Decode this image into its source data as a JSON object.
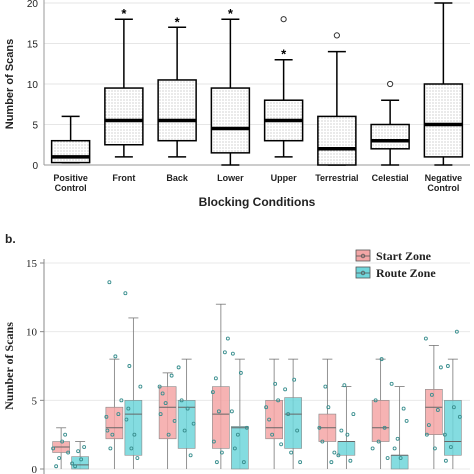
{
  "chart_data": [
    {
      "type": "box",
      "xlabel": "Blocking Conditions",
      "ylabel": "Number of Scans",
      "ylim": [
        0,
        20
      ],
      "yticks": [
        0,
        5,
        10,
        15,
        20
      ],
      "categories": [
        "Positive Control",
        "Front",
        "Back",
        "Lower",
        "Upper",
        "Terrestrial",
        "Celestial",
        "Negative Control"
      ],
      "boxes": [
        {
          "whisker_low": 0.3,
          "q1": 0.3,
          "median": 1,
          "q3": 3,
          "whisker_high": 6,
          "outliers": [],
          "significance": ""
        },
        {
          "whisker_low": 1,
          "q1": 2.5,
          "median": 5.5,
          "q3": 9.5,
          "whisker_high": 18,
          "outliers": [],
          "significance": "*"
        },
        {
          "whisker_low": 1,
          "q1": 3,
          "median": 5.5,
          "q3": 10.5,
          "whisker_high": 17,
          "outliers": [],
          "significance": "*"
        },
        {
          "whisker_low": 0,
          "q1": 1.5,
          "median": 4.5,
          "q3": 9.5,
          "whisker_high": 18,
          "outliers": [],
          "significance": "*"
        },
        {
          "whisker_low": 1,
          "q1": 3,
          "median": 5.5,
          "q3": 8,
          "whisker_high": 13,
          "outliers": [
            18
          ],
          "significance": "*"
        },
        {
          "whisker_low": 0,
          "q1": 0,
          "median": 2,
          "q3": 6,
          "whisker_high": 14,
          "outliers": [
            16
          ],
          "significance": ""
        },
        {
          "whisker_low": 0,
          "q1": 2,
          "median": 3,
          "q3": 5,
          "whisker_high": 8,
          "outliers": [
            10
          ],
          "significance": ""
        },
        {
          "whisker_low": 0,
          "q1": 1,
          "median": 5,
          "q3": 10,
          "whisker_high": 20,
          "outliers": [],
          "significance": ""
        }
      ],
      "colors": {
        "box_fill": "#f2f2f2",
        "stroke": "#000000"
      }
    },
    {
      "type": "box",
      "panel_label": "b.",
      "ylabel": "Number of Scans",
      "ylim": [
        0,
        15
      ],
      "yticks": [
        0,
        5,
        10,
        15
      ],
      "legend": [
        "Start Zone",
        "Route Zone"
      ],
      "legend_position": "top-right",
      "colors": {
        "start": "#f4a6a6",
        "route": "#6fd6db",
        "points": "#3a8f8f"
      },
      "groups": [
        {
          "start": {
            "whisker_low": 0,
            "q1": 1.2,
            "median": 1.6,
            "q3": 2.0,
            "whisker_high": 3.0
          },
          "route": {
            "whisker_low": 0,
            "q1": 0,
            "median": 0.3,
            "q3": 0.9,
            "whisker_high": 2.0
          }
        },
        {
          "start": {
            "whisker_low": 0,
            "q1": 2.2,
            "median": 3.0,
            "q3": 4.5,
            "whisker_high": 8.0
          },
          "route": {
            "whisker_low": 0,
            "q1": 1.0,
            "median": 4.0,
            "q3": 5.0,
            "whisker_high": 11.0
          }
        },
        {
          "start": {
            "whisker_low": 0,
            "q1": 2.2,
            "median": 4.5,
            "q3": 6.0,
            "whisker_high": 7.0
          },
          "route": {
            "whisker_low": 0,
            "q1": 1.5,
            "median": 4.5,
            "q3": 5.0,
            "whisker_high": 8.0
          }
        },
        {
          "start": {
            "whisker_low": 0,
            "q1": 1.5,
            "median": 4.0,
            "q3": 6.0,
            "whisker_high": 12.0
          },
          "route": {
            "whisker_low": 0,
            "q1": 0,
            "median": 3.0,
            "q3": 3.1,
            "whisker_high": 8.0
          }
        },
        {
          "start": {
            "whisker_low": 0,
            "q1": 2.2,
            "median": 3.0,
            "q3": 5.0,
            "whisker_high": 8.0
          },
          "route": {
            "whisker_low": 0,
            "q1": 1.5,
            "median": 4.0,
            "q3": 5.2,
            "whisker_high": 8.0
          }
        },
        {
          "start": {
            "whisker_low": 0,
            "q1": 2.0,
            "median": 3.0,
            "q3": 4.0,
            "whisker_high": 8.0
          },
          "route": {
            "whisker_low": 0,
            "q1": 1.0,
            "median": 2.0,
            "q3": 2.0,
            "whisker_high": 6.0
          }
        },
        {
          "start": {
            "whisker_low": 0,
            "q1": 2.0,
            "median": 3.0,
            "q3": 5.0,
            "whisker_high": 8.0
          },
          "route": {
            "whisker_low": 0,
            "q1": 0,
            "median": 1.0,
            "q3": 1.0,
            "whisker_high": 6.0
          }
        },
        {
          "start": {
            "whisker_low": 0,
            "q1": 2.5,
            "median": 4.5,
            "q3": 5.8,
            "whisker_high": 9.0
          },
          "route": {
            "whisker_low": 0,
            "q1": 1.0,
            "median": 2.0,
            "q3": 5.0,
            "whisker_high": 8.0
          }
        }
      ],
      "jitter_points": {
        "start": [
          [
            1.5,
            0.2,
            0.8,
            2.0,
            2.5,
            1.2
          ],
          [
            3.8,
            13.6,
            2.5,
            8.2,
            4.0,
            5.0,
            2.8,
            1.5
          ],
          [
            6.0,
            5.5,
            4.8,
            2.5,
            6.8,
            3.5,
            4.0
          ],
          [
            5.6,
            6.6,
            4.2,
            1.2,
            8.5,
            9.5,
            2.0,
            0.5
          ],
          [
            4.5,
            3.6,
            2.5,
            6.2,
            5.0,
            1.8
          ],
          [
            3.0,
            2.0,
            6.0,
            4.5,
            0.5,
            1.2
          ],
          [
            1.5,
            5.0,
            2.0,
            8.0,
            3.0,
            0.8
          ],
          [
            9.5,
            3.2,
            5.4,
            1.5,
            4.3,
            7.4,
            2.5
          ]
        ],
        "route": [
          [
            0.4,
            0.2,
            1.3,
            0.7,
            1.6
          ],
          [
            12.8,
            4.4,
            1.5,
            2.5,
            0.8,
            6.0,
            3.6,
            7.5
          ],
          [
            7.4,
            5.0,
            2.8,
            4.4,
            1.0,
            3.3
          ],
          [
            4.2,
            1.5,
            2.5,
            7.0,
            0.5,
            3.0,
            8.4
          ],
          [
            5.8,
            4.0,
            1.2,
            6.5,
            2.8,
            0.5
          ],
          [
            1.0,
            2.8,
            6.1,
            2.5,
            0.6,
            4.0
          ],
          [
            6.2,
            1.5,
            2.2,
            0.8,
            4.4,
            3.5
          ],
          [
            2.5,
            7.5,
            1.6,
            4.5,
            10.0,
            3.8,
            0.6
          ]
        ]
      }
    }
  ]
}
